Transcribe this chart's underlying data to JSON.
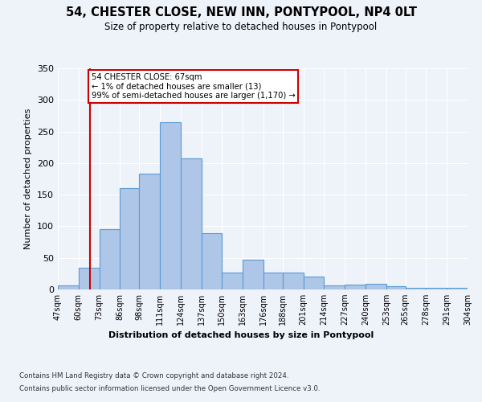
{
  "title": "54, CHESTER CLOSE, NEW INN, PONTYPOOL, NP4 0LT",
  "subtitle": "Size of property relative to detached houses in Pontypool",
  "xlabel": "Distribution of detached houses by size in Pontypool",
  "ylabel": "Number of detached properties",
  "bar_heights": [
    6,
    35,
    95,
    160,
    183,
    265,
    207,
    89,
    27,
    47,
    27,
    27,
    20,
    6,
    8,
    9,
    5,
    2,
    3,
    3
  ],
  "bin_edges": [
    47,
    60,
    73,
    86,
    98,
    111,
    124,
    137,
    150,
    163,
    176,
    188,
    201,
    214,
    227,
    240,
    253,
    265,
    278,
    291,
    304
  ],
  "tick_labels": [
    "47sqm",
    "60sqm",
    "73sqm",
    "86sqm",
    "98sqm",
    "111sqm",
    "124sqm",
    "137sqm",
    "150sqm",
    "163sqm",
    "176sqm",
    "188sqm",
    "201sqm",
    "214sqm",
    "227sqm",
    "240sqm",
    "253sqm",
    "265sqm",
    "278sqm",
    "291sqm",
    "304sqm"
  ],
  "bar_color": "#aec6e8",
  "bar_edge_color": "#5b9bd5",
  "vline_x": 67,
  "vline_color": "#cc0000",
  "ylim": [
    0,
    350
  ],
  "yticks": [
    0,
    50,
    100,
    150,
    200,
    250,
    300,
    350
  ],
  "annotation_text": "54 CHESTER CLOSE: 67sqm\n← 1% of detached houses are smaller (13)\n99% of semi-detached houses are larger (1,170) →",
  "annotation_box_color": "#ffffff",
  "annotation_border_color": "#cc0000",
  "footer_line1": "Contains HM Land Registry data © Crown copyright and database right 2024.",
  "footer_line2": "Contains public sector information licensed under the Open Government Licence v3.0.",
  "bg_color": "#eef2f9",
  "plot_bg_color": "#eef2f9"
}
